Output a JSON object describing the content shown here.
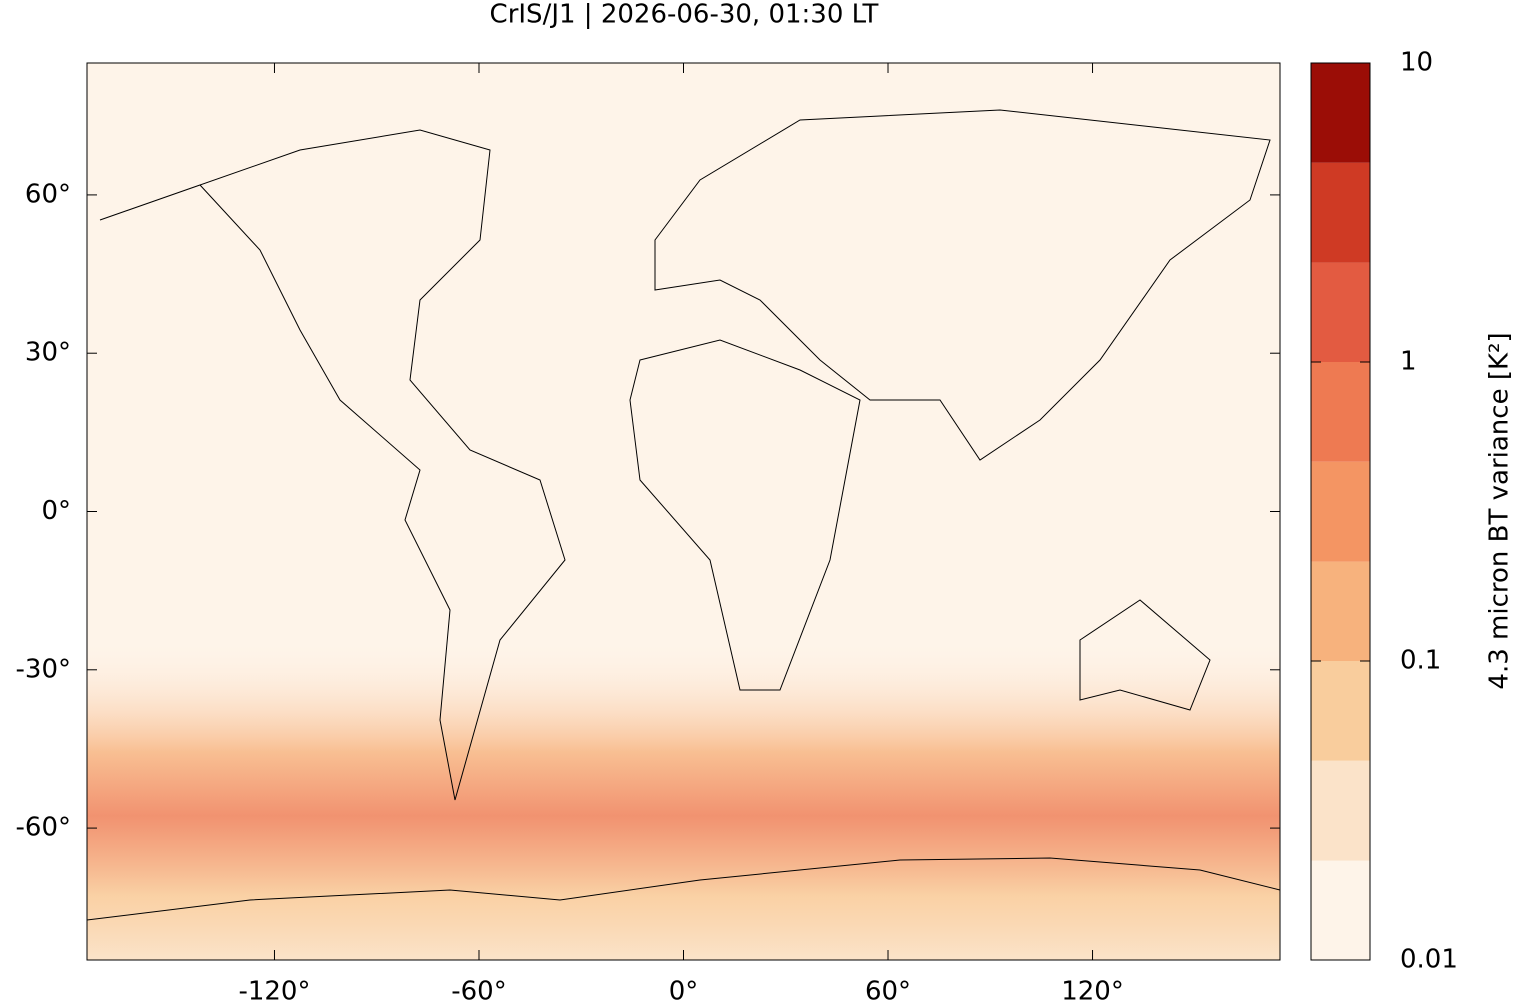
{
  "chart_data": {
    "type": "map",
    "title": "CrIS/J1 | 2026-06-30, 01:30 LT",
    "xlim": [
      -175,
      175
    ],
    "ylim": [
      -85,
      85
    ],
    "xticks": [
      {
        "value": -120,
        "label": "-120°"
      },
      {
        "value": -60,
        "label": "-60°"
      },
      {
        "value": 0,
        "label": "0°"
      },
      {
        "value": 60,
        "label": "60°"
      },
      {
        "value": 120,
        "label": "120°"
      }
    ],
    "yticks": [
      {
        "value": -60,
        "label": "-60°"
      },
      {
        "value": -30,
        "label": "-30°"
      },
      {
        "value": 0,
        "label": "0°"
      },
      {
        "value": 30,
        "label": "30°"
      },
      {
        "value": 60,
        "label": "60°"
      }
    ],
    "colorbar": {
      "label": "4.3 micron BT variance [K²]",
      "log": true,
      "lim": [
        0.01,
        10
      ],
      "ticks": [
        0.01,
        0.1,
        1,
        10
      ],
      "levels": [
        0.01,
        0.0215,
        0.0464,
        0.1,
        0.215,
        0.464,
        1,
        2.15,
        4.64,
        10
      ],
      "colors": [
        "#fef4e9",
        "#fbe3c9",
        "#f9cd9d",
        "#f7b27d",
        "#f49563",
        "#ee7a52",
        "#e35b41",
        "#cf3a24",
        "#9b0d06"
      ]
    }
  }
}
